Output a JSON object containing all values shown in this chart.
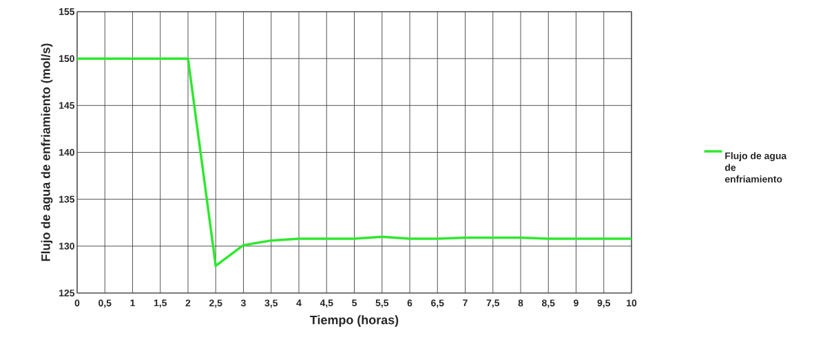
{
  "chart_data": {
    "type": "line",
    "xlabel": "Tiempo (horas)",
    "ylabel": "Flujo de agua de enfriamiento (mol/s)",
    "categories": [
      "0",
      "0,5",
      "1",
      "1,5",
      "2",
      "2,5",
      "3",
      "3,5",
      "4",
      "4,5",
      "5",
      "5,5",
      "6",
      "6,5",
      "7",
      "7,5",
      "8",
      "8,5",
      "9",
      "9,5",
      "10"
    ],
    "series": [
      {
        "name": "Flujo de agua de enfriamiento",
        "color": "#2ee82e",
        "values": [
          150,
          150,
          150,
          150,
          150,
          127.9,
          130.1,
          130.6,
          130.8,
          130.8,
          130.8,
          131.0,
          130.8,
          130.8,
          130.9,
          130.9,
          130.9,
          130.8,
          130.8,
          130.8,
          130.8
        ]
      }
    ],
    "ylim": [
      125,
      155
    ],
    "yticks": [
      125,
      130,
      135,
      140,
      145,
      150,
      155
    ],
    "grid": true,
    "legend": "right"
  }
}
